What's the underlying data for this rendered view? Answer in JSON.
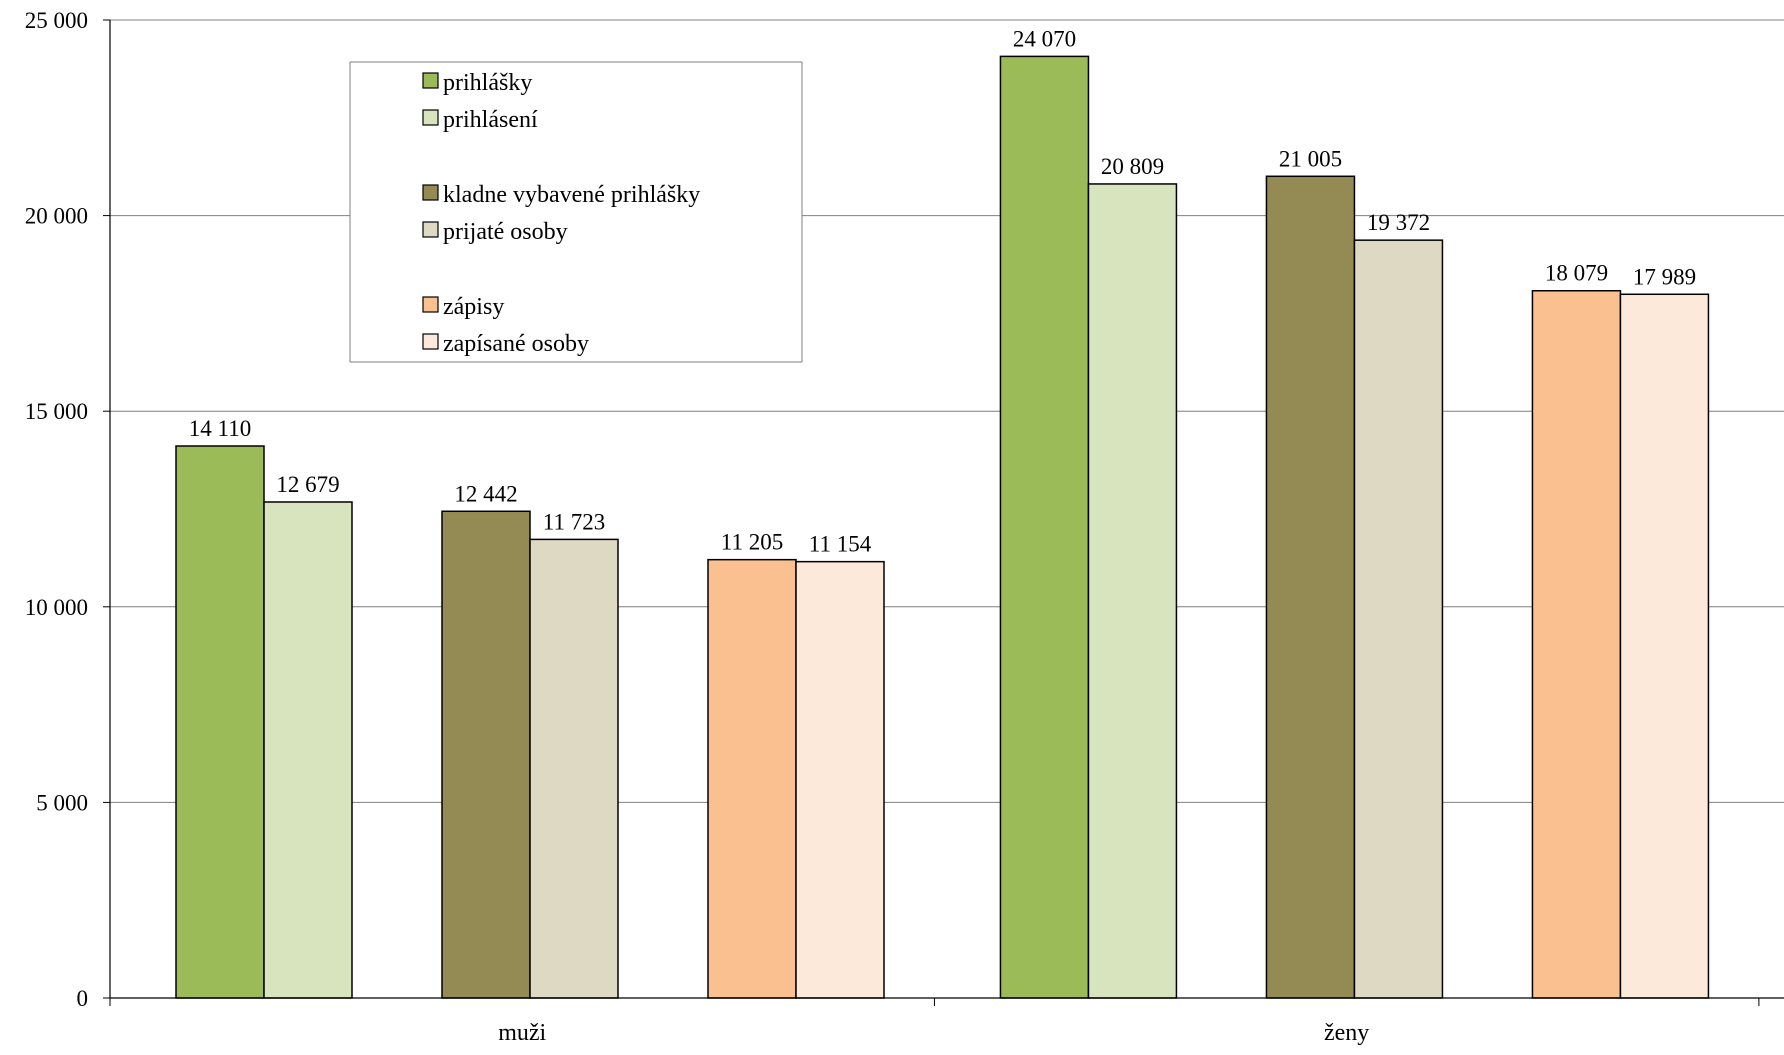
{
  "chart_data": {
    "type": "bar",
    "title": "",
    "xlabel": "",
    "ylabel": "",
    "categories": [
      "muži",
      "ženy"
    ],
    "ylim": [
      0,
      25000
    ],
    "yticks": [
      0,
      5000,
      10000,
      15000,
      20000,
      25000
    ],
    "ytick_labels": [
      "0",
      "5 000",
      "10 000",
      "15 000",
      "20 000",
      "25 000"
    ],
    "grid": true,
    "legend_position": "top-left",
    "series": [
      {
        "name": "prihlášky",
        "color": "#9bbb59",
        "values": [
          14110,
          24070
        ],
        "labels": [
          "14 110",
          "24 070"
        ]
      },
      {
        "name": "prihlásení",
        "color": "#d7e4bd",
        "values": [
          12679,
          20809
        ],
        "labels": [
          "12 679",
          "20 809"
        ]
      },
      {
        "name": "kladne vybavené prihlášky",
        "color": "#948a54",
        "values": [
          12442,
          21005
        ],
        "labels": [
          "12 442",
          "21 005"
        ]
      },
      {
        "name": "prijaté osoby",
        "color": "#ddd9c3",
        "values": [
          11723,
          19372
        ],
        "labels": [
          "11 723",
          "19 372"
        ]
      },
      {
        "name": "zápisy",
        "color": "#fac090",
        "values": [
          11205,
          18079
        ],
        "labels": [
          "11 205",
          "18 079"
        ]
      },
      {
        "name": "zapísané osoby",
        "color": "#fde9d9",
        "values": [
          11154,
          17989
        ],
        "labels": [
          "11 154",
          "17 989"
        ]
      }
    ]
  }
}
